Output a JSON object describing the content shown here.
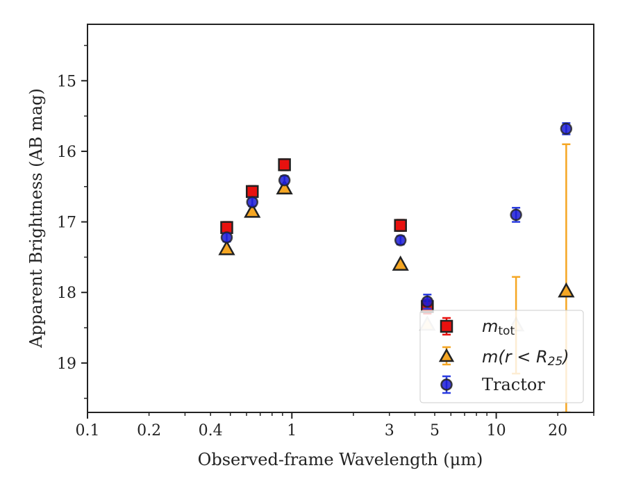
{
  "chart_data": {
    "type": "scatter",
    "title": "",
    "xlabel": "Observed-frame Wavelength (μm)",
    "ylabel": "Apparent Brightness (AB mag)",
    "xscale": "log",
    "xlim": [
      0.1,
      30
    ],
    "ylim": [
      19.7,
      14.2
    ],
    "y_inverted": true,
    "x_ticks": [
      0.1,
      0.2,
      0.4,
      1,
      3,
      5,
      10,
      20
    ],
    "x_tick_labels": [
      "0.1",
      "0.2",
      "0.4",
      "1",
      "3",
      "5",
      "10",
      "20"
    ],
    "y_ticks": [
      15,
      16,
      17,
      18,
      19
    ],
    "y_tick_labels": [
      "15",
      "16",
      "17",
      "18",
      "19"
    ],
    "legend_placement": "lower-right",
    "series": [
      {
        "name_parts": [
          "m",
          "tot"
        ],
        "marker": "square",
        "color": "#e8110f",
        "error_color": "#e8110f",
        "x": [
          0.48,
          0.64,
          0.92,
          3.4,
          4.6
        ],
        "y": [
          17.08,
          16.57,
          16.19,
          17.05,
          18.2
        ],
        "yerr": [
          0.08,
          0.08,
          0.08,
          0.08,
          0.1
        ]
      },
      {
        "name_parts": [
          "m(r < R",
          "25",
          ")"
        ],
        "marker": "triangle",
        "color": "#f5a623",
        "error_color": "#f5a623",
        "x": [
          0.48,
          0.64,
          0.92,
          3.4,
          4.6,
          12.5,
          22.0
        ],
        "y": [
          17.38,
          16.85,
          16.52,
          17.6,
          18.45,
          18.46,
          17.98
        ],
        "y_low": [
          null,
          null,
          null,
          null,
          null,
          17.78,
          15.9
        ],
        "y_high": [
          null,
          null,
          null,
          null,
          null,
          19.15,
          19.7
        ]
      },
      {
        "name": "Tractor",
        "marker": "circle",
        "color": "#1b1bd6",
        "error_color": "#2a3ce0",
        "x": [
          0.48,
          0.64,
          0.92,
          3.4,
          4.6,
          12.5,
          22.0
        ],
        "y": [
          17.22,
          16.72,
          16.41,
          17.26,
          18.13,
          16.9,
          15.68
        ],
        "yerr": [
          0.06,
          0.06,
          0.06,
          0.06,
          0.1,
          0.1,
          0.08
        ]
      }
    ]
  }
}
